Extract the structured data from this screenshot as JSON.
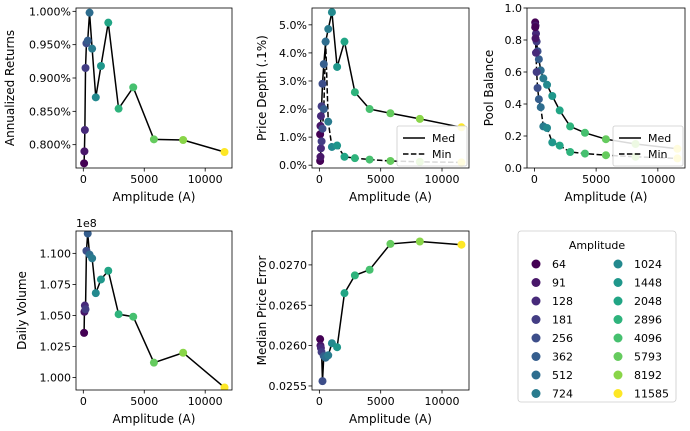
{
  "colors": {
    "64": "#440154",
    "91": "#481769",
    "128": "#472a7a",
    "181": "#433d84",
    "256": "#3d4e8a",
    "362": "#355e8d",
    "512": "#2e6d8e",
    "724": "#297b8e",
    "1024": "#23898e",
    "1448": "#1f978b",
    "2048": "#21a585",
    "2896": "#2eb37c",
    "4096": "#46c06f",
    "5793": "#65cb5e",
    "8192": "#89d548",
    "11585": "#fde725"
  },
  "legend": {
    "title": "Amplitude",
    "entries": [
      "64",
      "91",
      "128",
      "181",
      "256",
      "362",
      "512",
      "724",
      "1024",
      "1448",
      "2048",
      "2896",
      "4096",
      "5793",
      "8192",
      "11585"
    ]
  },
  "chart_data": [
    {
      "type": "line",
      "xlabel": "Amplitude (A)",
      "ylabel": "Annualized Returns",
      "xlim": [
        -600,
        12200
      ],
      "ylim": [
        0.00765,
        0.01005
      ],
      "xticks": [
        0,
        5000,
        10000
      ],
      "xticklabels": [
        "0",
        "5000",
        "10000"
      ],
      "yticks": [
        0.008,
        0.0085,
        0.009,
        0.0095,
        0.01
      ],
      "yticklabels": [
        "0.800%",
        "0.850%",
        "0.900%",
        "0.950%",
        "1.000%"
      ],
      "series": [
        {
          "style": "solid",
          "x": [
            64,
            91,
            128,
            181,
            256,
            362,
            512,
            724,
            1024,
            1448,
            2048,
            2896,
            4096,
            5793,
            8192,
            11585
          ],
          "y": [
            0.00772,
            0.0079,
            0.00822,
            0.00915,
            0.00952,
            0.00956,
            0.00998,
            0.00944,
            0.00871,
            0.00918,
            0.00983,
            0.00854,
            0.00886,
            0.00808,
            0.00807,
            0.00789
          ]
        }
      ]
    },
    {
      "type": "line",
      "xlabel": "Amplitude (A)",
      "ylabel": "Price Depth (.1%)",
      "xlim": [
        -600,
        12200
      ],
      "ylim": [
        -0.1,
        5.6
      ],
      "xticks": [
        0,
        5000,
        10000
      ],
      "xticklabels": [
        "0",
        "5000",
        "10000"
      ],
      "yticks": [
        0,
        1,
        2,
        3,
        4,
        5
      ],
      "yticklabels": [
        "0.0%",
        "1.0%",
        "2.0%",
        "3.0%",
        "4.0%",
        "5.0%"
      ],
      "legend_position": "lower-right",
      "series": [
        {
          "name": "Med",
          "style": "solid",
          "x": [
            64,
            91,
            128,
            181,
            256,
            362,
            512,
            724,
            1024,
            1448,
            2048,
            2896,
            4096,
            5793,
            8192,
            11585
          ],
          "y": [
            1.1,
            1.4,
            1.75,
            2.1,
            2.9,
            3.6,
            4.4,
            4.85,
            5.45,
            3.5,
            4.4,
            2.6,
            2.0,
            1.85,
            1.65,
            1.35
          ]
        },
        {
          "name": "Min",
          "style": "dashed",
          "x": [
            64,
            91,
            128,
            181,
            256,
            362,
            512,
            724,
            1024,
            1448,
            2048,
            2896,
            4096,
            5793,
            8192,
            11585
          ],
          "y": [
            0.15,
            0.3,
            0.6,
            0.85,
            1.3,
            2.0,
            4.4,
            1.55,
            0.65,
            0.7,
            0.3,
            0.25,
            0.2,
            0.15,
            0.12,
            0.1
          ]
        }
      ]
    },
    {
      "type": "line",
      "xlabel": "Amplitude (A)",
      "ylabel": "Pool Balance",
      "xlim": [
        -600,
        12200
      ],
      "ylim": [
        0.0,
        1.0
      ],
      "xticks": [
        0,
        5000,
        10000
      ],
      "xticklabels": [
        "0",
        "5000",
        "10000"
      ],
      "yticks": [
        0,
        0.2,
        0.4,
        0.6,
        0.8,
        1.0
      ],
      "yticklabels": [
        "0.0",
        "0.2",
        "0.4",
        "0.6",
        "0.8",
        "1.0"
      ],
      "legend_position": "lower-right",
      "series": [
        {
          "name": "Med",
          "style": "solid",
          "x": [
            64,
            91,
            128,
            181,
            256,
            362,
            512,
            724,
            1024,
            1448,
            2048,
            2896,
            4096,
            5793,
            8192,
            11585
          ],
          "y": [
            0.91,
            0.89,
            0.84,
            0.79,
            0.73,
            0.68,
            0.61,
            0.56,
            0.52,
            0.45,
            0.36,
            0.26,
            0.22,
            0.18,
            0.15,
            0.12
          ]
        },
        {
          "name": "Min",
          "style": "dashed",
          "x": [
            64,
            91,
            128,
            181,
            256,
            362,
            512,
            724,
            1024,
            1448,
            2048,
            2896,
            4096,
            5793,
            8192,
            11585
          ],
          "y": [
            0.88,
            0.81,
            0.72,
            0.6,
            0.5,
            0.43,
            0.38,
            0.26,
            0.25,
            0.16,
            0.14,
            0.1,
            0.09,
            0.08,
            0.07,
            0.06
          ]
        }
      ]
    },
    {
      "type": "line",
      "xlabel": "Amplitude (A)",
      "ylabel": "Daily Volume",
      "offset_label": "1e8",
      "xlim": [
        -600,
        12200
      ],
      "ylim": [
        0.99,
        1.118
      ],
      "xticks": [
        0,
        5000,
        10000
      ],
      "xticklabels": [
        "0",
        "5000",
        "10000"
      ],
      "yticks": [
        1.0,
        1.025,
        1.05,
        1.075,
        1.1
      ],
      "yticklabels": [
        "1.000",
        "1.025",
        "1.050",
        "1.075",
        "1.100"
      ],
      "series": [
        {
          "style": "solid",
          "x": [
            64,
            91,
            128,
            181,
            256,
            362,
            512,
            724,
            1024,
            1448,
            2048,
            2896,
            4096,
            5793,
            8192,
            11585
          ],
          "y": [
            1.036,
            1.053,
            1.058,
            1.055,
            1.102,
            1.116,
            1.099,
            1.096,
            1.068,
            1.079,
            1.086,
            1.051,
            1.049,
            1.012,
            1.02,
            0.992
          ]
        }
      ]
    },
    {
      "type": "line",
      "xlabel": "Amplitude (A)",
      "ylabel": "Median Price Error",
      "xlim": [
        -600,
        12200
      ],
      "ylim": [
        0.02545,
        0.02742
      ],
      "xticks": [
        0,
        5000,
        10000
      ],
      "xticklabels": [
        "0",
        "5000",
        "10000"
      ],
      "yticks": [
        0.0255,
        0.026,
        0.0265,
        0.027
      ],
      "yticklabels": [
        "0.0255",
        "0.0260",
        "0.0265",
        "0.0270"
      ],
      "series": [
        {
          "style": "solid",
          "x": [
            64,
            91,
            128,
            181,
            256,
            362,
            512,
            724,
            1024,
            1448,
            2048,
            2896,
            4096,
            5793,
            8192,
            11585
          ],
          "y": [
            0.02608,
            0.026,
            0.02597,
            0.02592,
            0.02556,
            0.02587,
            0.02585,
            0.02588,
            0.02603,
            0.02598,
            0.02665,
            0.02687,
            0.02694,
            0.02726,
            0.02729,
            0.02725
          ]
        }
      ]
    }
  ]
}
